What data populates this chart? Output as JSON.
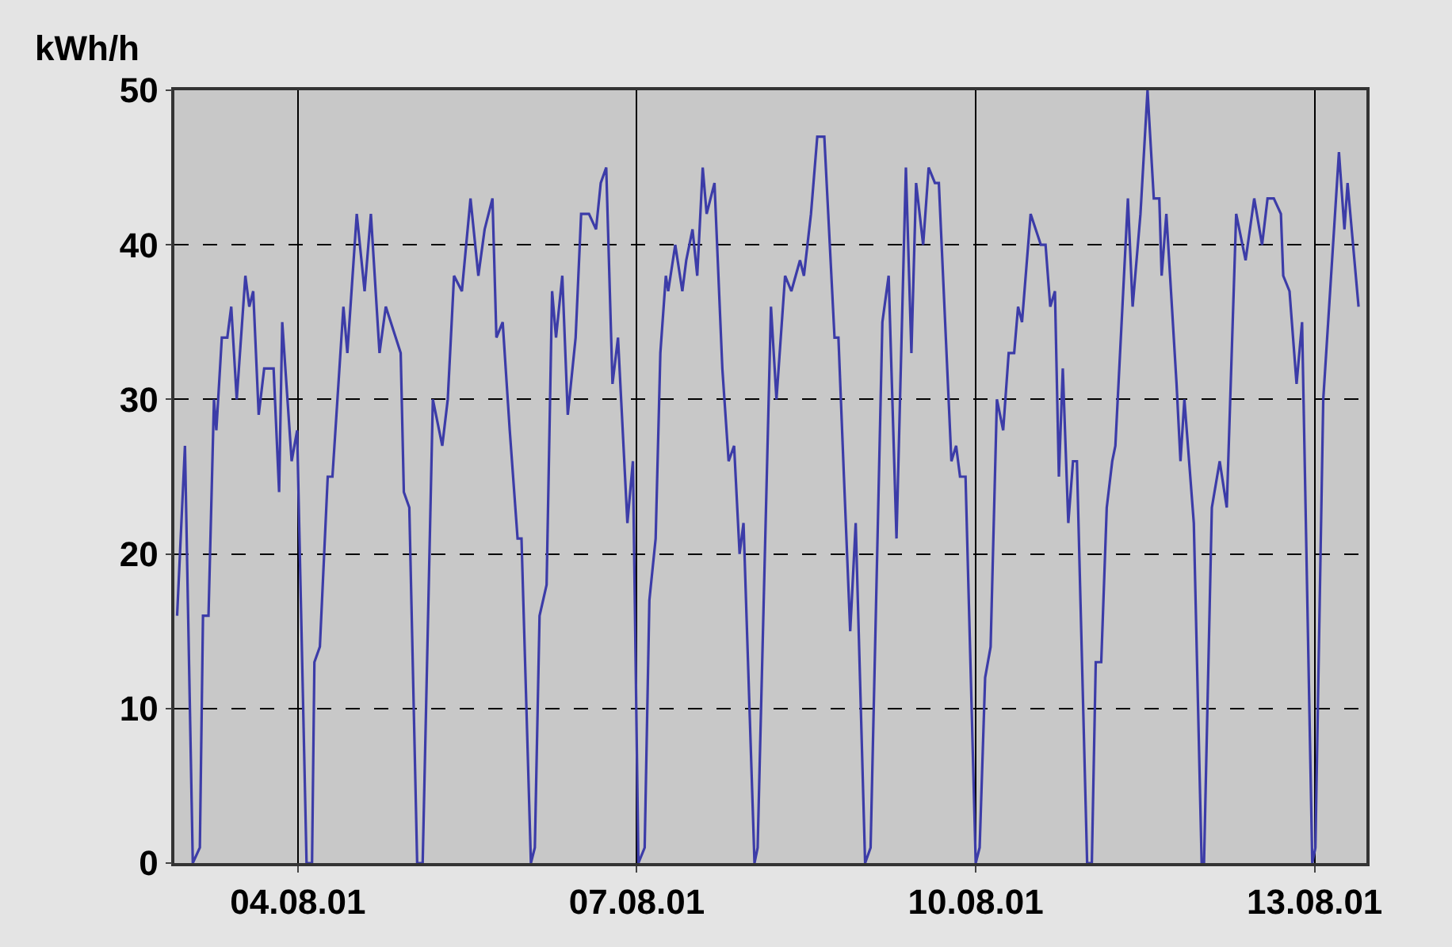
{
  "chart_data": {
    "type": "line",
    "ylabel": "kWh/h",
    "color": "#3c3ca8",
    "x": [
      "--08-02T22:20",
      "--08-03T00:00",
      "--08-03T01:40",
      "--08-03T03:10",
      "--08-03T03:50",
      "--08-03T05:00",
      "--08-03T06:10",
      "--08-03T06:40",
      "--08-03T07:50",
      "--08-03T09:00",
      "--08-03T09:50",
      "--08-03T11:00",
      "--08-03T12:50",
      "--08-03T13:40",
      "--08-03T14:30",
      "--08-03T15:40",
      "--08-03T16:50",
      "--08-03T18:50",
      "--08-03T20:00",
      "--08-03T20:40",
      "--08-03T22:40",
      "--08-03T23:50",
      "--08-04T01:50",
      "--08-04T03:00",
      "--08-04T03:30",
      "--08-04T04:40",
      "--08-04T06:20",
      "--08-04T07:20",
      "--08-04T09:40",
      "--08-04T10:30",
      "--08-04T12:30",
      "--08-04T14:10",
      "--08-04T15:30",
      "--08-04T17:20",
      "--08-04T18:40",
      "--08-04T21:50",
      "--08-04T22:30",
      "--08-04T23:40",
      "--08-05T01:20",
      "--08-05T02:30",
      "--08-05T04:40",
      "--08-05T06:40",
      "--08-05T07:50",
      "--08-05T09:10",
      "--08-05T10:50",
      "--08-05T12:40",
      "--08-05T14:20",
      "--08-05T15:40",
      "--08-05T17:20",
      "--08-05T18:10",
      "--08-05T19:30",
      "--08-05T21:00",
      "--08-05T22:40",
      "--08-05T23:30",
      "--08-06T01:30",
      "--08-06T02:20",
      "--08-06T03:20",
      "--08-06T04:50",
      "--08-06T06:00",
      "--08-06T06:50",
      "--08-06T08:10",
      "--08-06T09:20",
      "--08-06T11:00",
      "--08-06T12:10",
      "--08-06T13:50",
      "--08-06T15:20",
      "--08-06T16:20",
      "--08-06T17:30",
      "--08-06T18:50",
      "--08-06T20:00",
      "--08-06T22:00",
      "--08-06T23:10",
      "--08-07T00:20",
      "--08-07T01:40",
      "--08-07T02:40",
      "--08-07T04:00",
      "--08-07T05:00",
      "--08-07T06:10",
      "--08-07T06:40",
      "--08-07T08:10",
      "--08-07T09:40",
      "--08-07T10:30",
      "--08-07T11:50",
      "--08-07T12:50",
      "--08-07T14:00",
      "--08-07T14:50",
      "--08-07T16:30",
      "--08-07T18:10",
      "--08-07T19:30",
      "--08-07T20:40",
      "--08-07T21:50",
      "--08-07T22:40",
      "--08-08T01:00",
      "--08-08T01:40",
      "--08-08T04:30",
      "--08-08T05:40",
      "--08-08T07:30",
      "--08-08T08:50",
      "--08-08T10:40",
      "--08-08T11:30",
      "--08-08T13:00",
      "--08-08T14:20",
      "--08-08T15:50",
      "--08-08T18:00",
      "--08-08T18:50",
      "--08-08T20:00",
      "--08-08T21:20",
      "--08-08T22:30",
      "--08-09T00:30",
      "--08-09T01:40",
      "--08-09T04:10",
      "--08-09T05:30",
      "--08-09T07:10",
      "--08-09T09:10",
      "--08-09T10:20",
      "--08-09T11:20",
      "--08-09T12:50",
      "--08-09T14:00",
      "--08-09T15:20",
      "--08-09T16:10",
      "--08-09T18:50",
      "--08-09T19:50",
      "--08-09T20:40",
      "--08-09T21:50",
      "--08-10T00:00",
      "--08-10T00:50",
      "--08-10T02:00",
      "--08-10T03:10",
      "--08-10T04:30",
      "--08-10T05:50",
      "--08-10T07:00",
      "--08-10T08:10",
      "--08-10T09:00",
      "--08-10T09:50",
      "--08-10T11:40",
      "--08-10T13:50",
      "--08-10T14:50",
      "--08-10T15:50",
      "--08-10T16:50",
      "--08-10T17:40",
      "--08-10T18:30",
      "--08-10T19:40",
      "--08-10T20:40",
      "--08-10T21:30",
      "--08-10T23:40",
      "--08-11T00:40",
      "--08-11T01:30",
      "--08-11T02:40",
      "--08-11T03:50",
      "--08-11T05:00",
      "--08-11T05:40",
      "--08-11T08:20",
      "--08-11T09:20",
      "--08-11T11:00",
      "--08-11T12:30",
      "--08-11T13:50",
      "--08-11T15:00",
      "--08-11T15:30",
      "--08-11T16:30",
      "--08-11T18:40",
      "--08-11T19:30",
      "--08-11T20:20",
      "--08-11T22:20",
      "--08-12T00:00",
      "--08-12T00:30",
      "--08-12T02:10",
      "--08-12T03:50",
      "--08-12T05:20",
      "--08-12T07:20",
      "--08-12T09:20",
      "--08-12T11:10",
      "--08-12T12:50",
      "--08-12T14:00",
      "--08-12T15:20",
      "--08-12T16:50",
      "--08-12T17:20",
      "--08-12T18:40",
      "--08-12T20:10",
      "--08-12T21:20",
      "--08-12T23:30",
      "--08-13T00:10",
      "--08-13T01:50",
      "--08-13T03:30",
      "--08-13T05:10",
      "--08-13T06:20",
      "--08-13T07:00",
      "--08-13T09:20"
    ],
    "values": [
      16,
      27,
      0,
      1,
      16,
      16,
      30,
      28,
      34,
      34,
      36,
      30,
      38,
      36,
      37,
      29,
      32,
      32,
      24,
      35,
      26,
      28,
      0,
      0,
      13,
      14,
      25,
      25,
      36,
      33,
      42,
      37,
      42,
      33,
      36,
      33,
      24,
      23,
      0,
      0,
      30,
      27,
      30,
      38,
      37,
      43,
      38,
      41,
      43,
      34,
      35,
      28,
      21,
      21,
      0,
      1,
      16,
      18,
      37,
      34,
      38,
      29,
      34,
      42,
      42,
      41,
      44,
      45,
      31,
      34,
      22,
      26,
      0,
      1,
      17,
      21,
      33,
      38,
      37,
      40,
      37,
      39,
      41,
      38,
      45,
      42,
      44,
      32,
      26,
      27,
      20,
      22,
      0,
      1,
      36,
      30,
      38,
      37,
      39,
      38,
      42,
      47,
      47,
      34,
      34,
      25,
      15,
      22,
      0,
      1,
      35,
      38,
      21,
      45,
      33,
      44,
      40,
      45,
      44,
      44,
      26,
      27,
      25,
      25,
      0,
      1,
      12,
      14,
      30,
      28,
      33,
      33,
      36,
      35,
      42,
      40,
      40,
      36,
      37,
      25,
      32,
      22,
      26,
      26,
      0,
      0,
      13,
      13,
      23,
      26,
      27,
      43,
      36,
      42,
      50,
      43,
      43,
      38,
      42,
      31,
      26,
      30,
      22,
      0,
      0,
      23,
      26,
      23,
      42,
      39,
      43,
      40,
      43,
      43,
      42,
      38,
      37,
      31,
      35,
      0,
      1,
      30,
      38,
      46,
      41,
      44,
      36
    ],
    "xlim": [
      "--08-02T21:45",
      "--08-13T11:00"
    ],
    "xticks": [
      {
        "value": "--08-04",
        "label": "04.08.01"
      },
      {
        "value": "--08-07",
        "label": "07.08.01"
      },
      {
        "value": "--08-10",
        "label": "10.08.01"
      },
      {
        "value": "--08-13",
        "label": "13.08.01"
      }
    ],
    "ylim": [
      0,
      50
    ],
    "yticks": [
      0,
      10,
      20,
      30,
      40,
      50
    ],
    "grid": true,
    "marker": "none",
    "line_style": "solid"
  }
}
